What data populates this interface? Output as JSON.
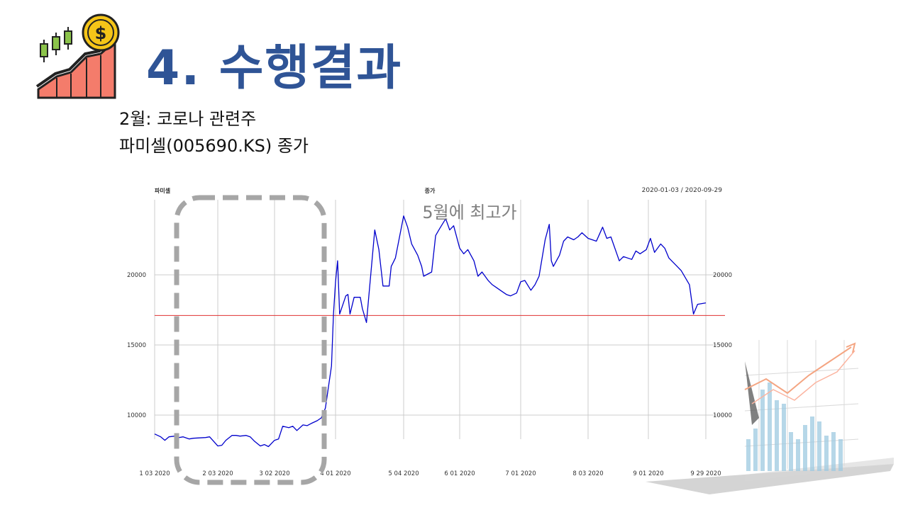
{
  "slide": {
    "title": "4. 수행결과",
    "subtitle_line1": "2월: 코로나 관련주",
    "subtitle_line2": "파미셀(005690.KS) 종가"
  },
  "colors": {
    "title": "#2f5496",
    "series": "#0000cc",
    "reference_line": "#e03030",
    "grid": "#cccccc",
    "highlight_box": "#a6a6a6",
    "annotation": "#7f7f7f",
    "icon_bar": "#f47c6b",
    "icon_coin": "#f5c518"
  },
  "icons": {
    "logo": "stock-growth-coin-icon",
    "decoration": "3d-bar-chart-decoration"
  },
  "chart_data": {
    "type": "line",
    "title": "종가",
    "top_left_label": "파미셀",
    "date_range_label": "2020-01-03 / 2020-09-29",
    "annotation": "5월에 최고가",
    "x_tick_labels": [
      "1 03 2020",
      "2 03 2020",
      "3 02 2020",
      "4 01 2020",
      "5 04 2020",
      "6 01 2020",
      "7 01 2020",
      "8 03 2020",
      "9 01 2020",
      "9 29 2020"
    ],
    "y_ticks": [
      10000,
      15000,
      20000
    ],
    "y_tick_labels": [
      "10000",
      "15000",
      "20000"
    ],
    "ylim": [
      7000,
      24500
    ],
    "reference_line_value": 17100,
    "highlight_period": [
      "2020-01-20",
      "2020-03-31"
    ],
    "grid": true,
    "series": [
      {
        "x": [
          "2020-01-03",
          "2020-01-06",
          "2020-01-08",
          "2020-01-10",
          "2020-01-13",
          "2020-01-15",
          "2020-01-17",
          "2020-01-20",
          "2020-01-22",
          "2020-01-28",
          "2020-01-30",
          "2020-02-03",
          "2020-02-05",
          "2020-02-07",
          "2020-02-10",
          "2020-02-12",
          "2020-02-14",
          "2020-02-17",
          "2020-02-19",
          "2020-02-21",
          "2020-02-24",
          "2020-02-26",
          "2020-02-28",
          "2020-03-02",
          "2020-03-04",
          "2020-03-06",
          "2020-03-09",
          "2020-03-11",
          "2020-03-13",
          "2020-03-16",
          "2020-03-18",
          "2020-03-20",
          "2020-03-23",
          "2020-03-25",
          "2020-03-27",
          "2020-03-30",
          "2020-03-31",
          "2020-04-01",
          "2020-04-02",
          "2020-04-03",
          "2020-04-06",
          "2020-04-07",
          "2020-04-08",
          "2020-04-10",
          "2020-04-13",
          "2020-04-14",
          "2020-04-16",
          "2020-04-20",
          "2020-04-22",
          "2020-04-24",
          "2020-04-27",
          "2020-04-28",
          "2020-04-29",
          "2020-04-30",
          "2020-05-04",
          "2020-05-06",
          "2020-05-08",
          "2020-05-11",
          "2020-05-13",
          "2020-05-14",
          "2020-05-18",
          "2020-05-20",
          "2020-05-22",
          "2020-05-25",
          "2020-05-27",
          "2020-05-29",
          "2020-06-01",
          "2020-06-03",
          "2020-06-05",
          "2020-06-08",
          "2020-06-10",
          "2020-06-12",
          "2020-06-15",
          "2020-06-17",
          "2020-06-19",
          "2020-06-22",
          "2020-06-24",
          "2020-06-26",
          "2020-06-29",
          "2020-07-01",
          "2020-07-03",
          "2020-07-06",
          "2020-07-08",
          "2020-07-10",
          "2020-07-13",
          "2020-07-15",
          "2020-07-16",
          "2020-07-17",
          "2020-07-20",
          "2020-07-22",
          "2020-07-24",
          "2020-07-27",
          "2020-07-29",
          "2020-07-31",
          "2020-08-03",
          "2020-08-05",
          "2020-08-07",
          "2020-08-10",
          "2020-08-12",
          "2020-08-14",
          "2020-08-18",
          "2020-08-20",
          "2020-08-24",
          "2020-08-26",
          "2020-08-28",
          "2020-08-31",
          "2020-09-02",
          "2020-09-04",
          "2020-09-07",
          "2020-09-09",
          "2020-09-11",
          "2020-09-15",
          "2020-09-17",
          "2020-09-21",
          "2020-09-23",
          "2020-09-25",
          "2020-09-29"
        ],
        "values": [
          8650,
          8450,
          8200,
          8450,
          8500,
          8400,
          8450,
          8300,
          8350,
          8400,
          8450,
          7800,
          7850,
          8200,
          8550,
          8550,
          8500,
          8550,
          8450,
          8150,
          7800,
          7900,
          7750,
          8200,
          8300,
          9200,
          9100,
          9200,
          8900,
          9300,
          9250,
          9400,
          9600,
          9800,
          10500,
          13500,
          17200,
          19500,
          21000,
          17200,
          18500,
          18600,
          17200,
          18400,
          18400,
          17600,
          16600,
          23200,
          21800,
          19200,
          19200,
          20600,
          20900,
          21200,
          24200,
          23400,
          22200,
          21400,
          20600,
          19900,
          20200,
          22800,
          23300,
          24000,
          23200,
          23500,
          21900,
          21500,
          21800,
          21000,
          19900,
          20200,
          19600,
          19300,
          19100,
          18800,
          18600,
          18500,
          18700,
          19500,
          19600,
          18900,
          19300,
          19900,
          22500,
          23600,
          21000,
          20600,
          21400,
          22400,
          22700,
          22500,
          22700,
          23000,
          22600,
          22500,
          22400,
          23400,
          22600,
          22700,
          21000,
          21300,
          21100,
          21700,
          21500,
          21800,
          22600,
          21600,
          22200,
          21900,
          21200,
          20600,
          20300,
          19300,
          17200,
          17900,
          18000
        ]
      }
    ]
  }
}
